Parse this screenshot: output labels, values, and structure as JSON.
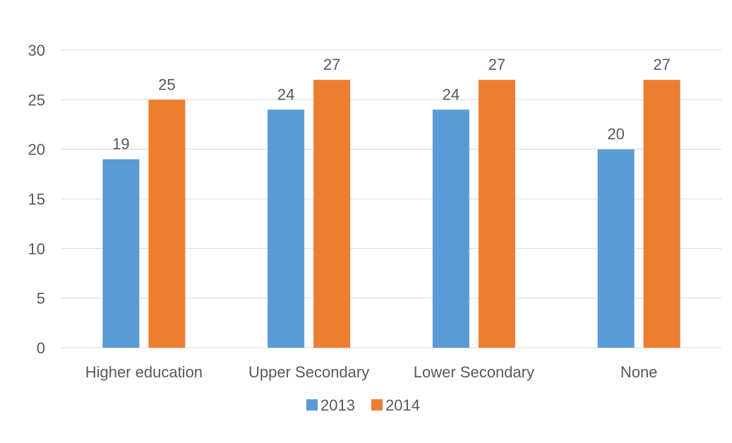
{
  "chart_data": {
    "type": "bar",
    "title": "",
    "xlabel": "",
    "ylabel": "",
    "ylim": [
      0,
      30
    ],
    "yticks": [
      0,
      5,
      10,
      15,
      20,
      25,
      30
    ],
    "grid": true,
    "legend_position": "bottom",
    "categories": [
      "Higher education",
      "Upper Secondary",
      "Lower Secondary",
      "None"
    ],
    "series": [
      {
        "name": "2013",
        "color": "#5b9bd5",
        "values": [
          19,
          24,
          24,
          20
        ]
      },
      {
        "name": "2014",
        "color": "#ed7d31",
        "values": [
          25,
          27,
          27,
          27
        ]
      }
    ]
  }
}
